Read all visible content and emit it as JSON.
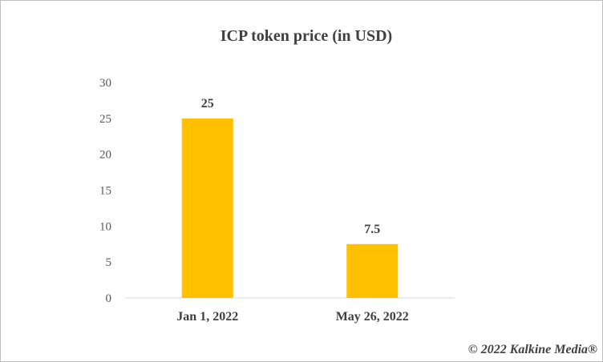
{
  "chart_data": {
    "type": "bar",
    "title": "ICP token price (in USD)",
    "categories": [
      "Jan 1, 2022",
      "May 26, 2022"
    ],
    "values": [
      25,
      7.5
    ],
    "data_labels": [
      "25",
      "7.5"
    ],
    "yticks": [
      "0",
      "5",
      "10",
      "15",
      "20",
      "25",
      "30"
    ],
    "ylim": [
      0,
      30
    ],
    "xlabel": "",
    "ylabel": "",
    "grid": false,
    "bar_color": "#FFC000"
  },
  "credit": "© 2022 Kalkine Media®"
}
